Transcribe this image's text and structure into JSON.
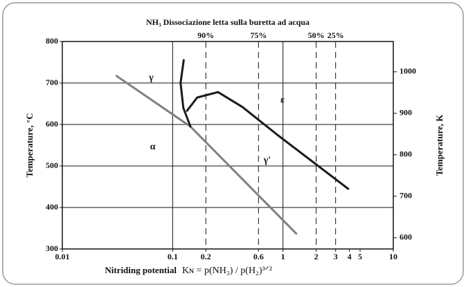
{
  "chart_data": {
    "type": "line",
    "title": "NH₃ Dissociazione letta sulla buretta ad acqua",
    "xlabel": "Nitriding potential",
    "xlabel_formula": "Kɴ = p(NH₃) / p(H₂)³ᐟ²",
    "ylabel": "Temperature, °C",
    "y2label": "Temperature, K",
    "xlog": true,
    "xlim": [
      0.01,
      10
    ],
    "xticks": [
      0.01,
      0.1,
      0.2,
      0.6,
      1,
      2,
      3,
      4,
      5,
      10
    ],
    "ylim": [
      300,
      800
    ],
    "yticks": [
      300,
      400,
      500,
      600,
      700,
      800
    ],
    "y2lim": [
      573,
      1073
    ],
    "y2ticks": [
      600,
      700,
      800,
      900,
      1000
    ],
    "top_ticks": [
      {
        "value": 0.2,
        "label": "90%"
      },
      {
        "value": 0.6,
        "label": "75%"
      },
      {
        "value": 2,
        "label": "50%"
      },
      {
        "value": 3,
        "label": "25%"
      }
    ],
    "grid": true,
    "series": [
      {
        "color": "#808080",
        "x": [
          0.031,
          0.145,
          1.32
        ],
        "values": [
          717,
          595,
          337
        ]
      },
      {
        "color": "#1a1a1a",
        "x": [
          0.126,
          0.118,
          0.125,
          0.145
        ],
        "values": [
          755,
          700,
          640,
          595
        ]
      },
      {
        "color": "#1a1a1a",
        "x": [
          0.135,
          0.167,
          0.258,
          0.43,
          0.89,
          3.9
        ],
        "values": [
          633,
          665,
          678,
          642,
          575,
          445
        ]
      }
    ],
    "annotations": [
      {
        "text": "γ",
        "x": 0.064,
        "y": 712
      },
      {
        "text": "ε",
        "x": 0.99,
        "y": 658
      },
      {
        "text": "α",
        "x": 0.066,
        "y": 545
      },
      {
        "text": "γ'",
        "x": 0.72,
        "y": 513
      }
    ]
  }
}
